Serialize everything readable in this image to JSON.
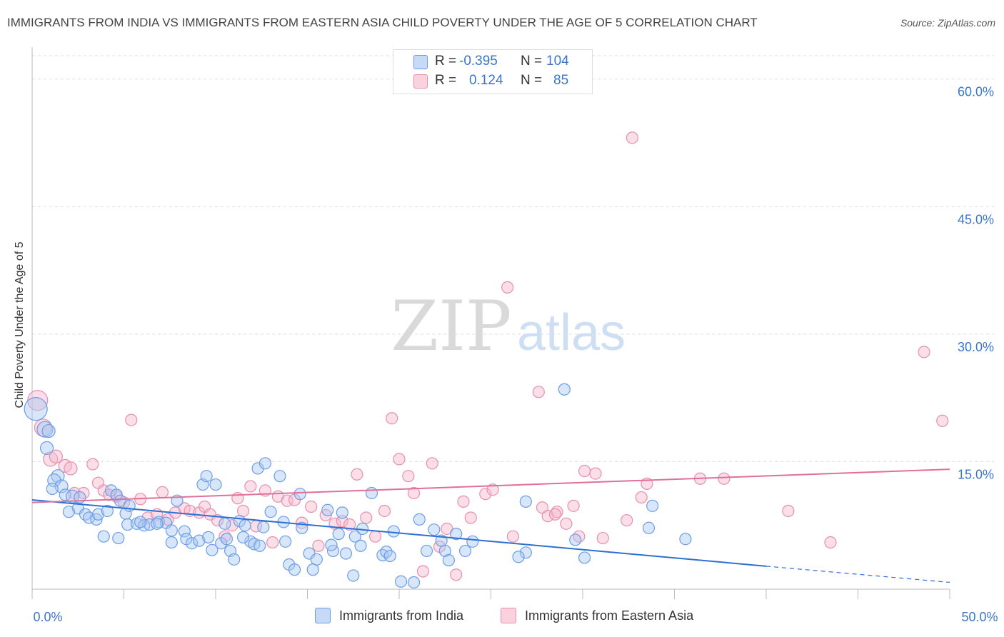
{
  "title": "IMMIGRANTS FROM INDIA VS IMMIGRANTS FROM EASTERN ASIA CHILD POVERTY UNDER THE AGE OF 5 CORRELATION CHART",
  "source": "Source: ZipAtlas.com",
  "watermark": {
    "zip": "ZIP",
    "atlas": "atlas"
  },
  "legend": {
    "r_label": "R =",
    "n_label": "N =",
    "rows": [
      {
        "r": "-0.395",
        "n": "104",
        "color": "#6b9de8"
      },
      {
        "r": "0.124",
        "n": "85",
        "color": "#e88fad"
      }
    ]
  },
  "bottom_legend": [
    "Immigrants from India",
    "Immigrants from Eastern Asia"
  ],
  "chart_data": {
    "type": "scatter",
    "title": "IMMIGRANTS FROM INDIA VS IMMIGRANTS FROM EASTERN ASIA CHILD POVERTY UNDER THE AGE OF 5 CORRELATION CHART",
    "ylabel": "Child Poverty Under the Age of 5",
    "xlabel": "",
    "xlim": [
      0,
      50
    ],
    "ylim": [
      0,
      63
    ],
    "x_tick_labels": [
      "0.0%",
      "50.0%"
    ],
    "y_ticks": [
      15,
      30,
      45,
      60
    ],
    "y_tick_labels": [
      "15.0%",
      "30.0%",
      "45.0%",
      "60.0%"
    ],
    "grid": true,
    "legend_position": "top-center",
    "colors": {
      "india": "#6b9de8",
      "eastern_asia": "#e88fad",
      "india_line": "#2e6fd3",
      "asia_line": "#e0709a"
    },
    "series": [
      {
        "name": "Immigrants from India",
        "trend": {
          "x0": 0,
          "y0": 10.5,
          "x1": 40,
          "y1": 2.7,
          "dash_to_x": 50,
          "dash_to_y": 0.8
        },
        "points": [
          [
            0.2,
            21.2,
            16
          ],
          [
            0.7,
            18.8,
            11
          ],
          [
            0.9,
            18.6,
            9
          ],
          [
            0.8,
            16.6,
            9
          ],
          [
            1.4,
            13.3,
            9
          ],
          [
            1.2,
            12.8,
            9
          ],
          [
            1.6,
            12.1,
            9
          ],
          [
            1.1,
            11.8,
            8
          ],
          [
            1.8,
            11.1,
            8
          ],
          [
            2.2,
            10.9,
            9
          ],
          [
            2.6,
            10.8,
            8
          ],
          [
            2.5,
            9.5,
            8
          ],
          [
            2.9,
            8.8,
            8
          ],
          [
            3.1,
            8.4,
            8
          ],
          [
            3.5,
            8.2,
            8
          ],
          [
            3.6,
            8.8,
            8
          ],
          [
            4.1,
            9.2,
            8
          ],
          [
            4.3,
            11.6,
            8
          ],
          [
            4.6,
            11.1,
            8
          ],
          [
            4.8,
            10.4,
            8
          ],
          [
            5.1,
            8.9,
            8
          ],
          [
            5.3,
            9.8,
            8
          ],
          [
            4.7,
            6.0,
            8
          ],
          [
            5.2,
            7.6,
            8
          ],
          [
            5.7,
            7.7,
            8
          ],
          [
            6.1,
            7.5,
            8
          ],
          [
            6.4,
            7.6,
            8
          ],
          [
            6.9,
            7.9,
            8
          ],
          [
            7.3,
            7.8,
            8
          ],
          [
            7.9,
            10.4,
            8
          ],
          [
            7.6,
            6.9,
            8
          ],
          [
            8.3,
            6.8,
            8
          ],
          [
            7.6,
            5.5,
            8
          ],
          [
            8.4,
            5.9,
            8
          ],
          [
            8.7,
            5.4,
            8
          ],
          [
            9.1,
            5.7,
            8
          ],
          [
            9.3,
            12.3,
            8
          ],
          [
            9.5,
            13.3,
            8
          ],
          [
            10.0,
            12.3,
            8
          ],
          [
            9.6,
            6.1,
            8
          ],
          [
            9.8,
            4.6,
            8
          ],
          [
            10.3,
            5.4,
            8
          ],
          [
            10.6,
            5.9,
            8
          ],
          [
            10.8,
            4.5,
            8
          ],
          [
            11.0,
            3.5,
            8
          ],
          [
            11.3,
            8.0,
            8
          ],
          [
            11.6,
            7.5,
            8
          ],
          [
            11.9,
            5.6,
            8
          ],
          [
            12.1,
            5.3,
            8
          ],
          [
            12.3,
            14.2,
            8
          ],
          [
            12.7,
            14.8,
            8
          ],
          [
            12.6,
            7.3,
            8
          ],
          [
            13.0,
            9.1,
            8
          ],
          [
            13.5,
            13.3,
            8
          ],
          [
            13.8,
            5.6,
            8
          ],
          [
            14.0,
            2.9,
            8
          ],
          [
            14.3,
            2.3,
            8
          ],
          [
            14.6,
            11.2,
            8
          ],
          [
            14.7,
            7.2,
            8
          ],
          [
            15.1,
            4.2,
            8
          ],
          [
            15.5,
            3.5,
            8
          ],
          [
            16.1,
            9.3,
            8
          ],
          [
            16.4,
            4.5,
            8
          ],
          [
            16.7,
            6.5,
            8
          ],
          [
            16.9,
            9.0,
            8
          ],
          [
            17.1,
            4.2,
            8
          ],
          [
            17.5,
            1.6,
            8
          ],
          [
            17.6,
            6.2,
            8
          ],
          [
            18.0,
            7.1,
            8
          ],
          [
            18.5,
            11.3,
            8
          ],
          [
            19.1,
            4.0,
            8
          ],
          [
            19.3,
            4.4,
            8
          ],
          [
            19.7,
            6.8,
            8
          ],
          [
            20.1,
            0.9,
            8
          ],
          [
            20.8,
            0.8,
            8
          ],
          [
            21.1,
            8.2,
            8
          ],
          [
            21.5,
            4.5,
            8
          ],
          [
            22.3,
            5.7,
            8
          ],
          [
            22.5,
            4.5,
            8
          ],
          [
            22.7,
            3.4,
            8
          ],
          [
            23.1,
            6.5,
            8
          ],
          [
            23.6,
            4.5,
            8
          ],
          [
            24.0,
            5.6,
            8
          ],
          [
            26.9,
            4.3,
            8
          ],
          [
            26.9,
            10.3,
            8
          ],
          [
            29.0,
            23.5,
            8
          ],
          [
            29.6,
            5.8,
            8
          ],
          [
            30.1,
            3.7,
            8
          ],
          [
            33.6,
            7.2,
            8
          ],
          [
            33.8,
            9.8,
            8
          ],
          [
            35.6,
            5.9,
            8
          ],
          [
            16.3,
            5.2,
            8
          ],
          [
            6.8,
            7.7,
            8
          ],
          [
            19.5,
            3.9,
            8
          ],
          [
            21.9,
            7.0,
            8
          ],
          [
            12.4,
            5.1,
            8
          ],
          [
            26.5,
            3.8,
            8
          ],
          [
            15.3,
            2.3,
            8
          ],
          [
            13.7,
            7.9,
            8
          ],
          [
            11.5,
            6.1,
            8
          ],
          [
            5.9,
            7.9,
            8
          ],
          [
            2.0,
            9.1,
            8
          ],
          [
            17.9,
            5.1,
            8
          ],
          [
            10.5,
            7.7,
            8
          ],
          [
            3.9,
            6.2,
            8
          ]
        ]
      },
      {
        "name": "Immigrants from Eastern Asia",
        "trend": {
          "x0": 0,
          "y0": 10.2,
          "x1": 50,
          "y1": 14.1
        },
        "points": [
          [
            0.3,
            22.2,
            14
          ],
          [
            0.6,
            19.0,
            12
          ],
          [
            1.0,
            15.3,
            10
          ],
          [
            1.3,
            15.6,
            9
          ],
          [
            1.8,
            14.5,
            9
          ],
          [
            2.1,
            14.2,
            9
          ],
          [
            2.3,
            11.3,
            8
          ],
          [
            2.8,
            11.3,
            8
          ],
          [
            3.3,
            14.7,
            8
          ],
          [
            3.6,
            12.5,
            8
          ],
          [
            3.9,
            11.6,
            8
          ],
          [
            4.2,
            11.1,
            8
          ],
          [
            4.6,
            10.9,
            8
          ],
          [
            5.0,
            10.2,
            8
          ],
          [
            5.4,
            19.9,
            8
          ],
          [
            5.9,
            10.6,
            8
          ],
          [
            6.3,
            8.4,
            8
          ],
          [
            6.8,
            8.8,
            8
          ],
          [
            7.1,
            11.4,
            8
          ],
          [
            7.4,
            8.2,
            8
          ],
          [
            7.8,
            9.0,
            8
          ],
          [
            8.3,
            9.5,
            8
          ],
          [
            8.6,
            9.2,
            8
          ],
          [
            9.1,
            9.0,
            8
          ],
          [
            9.4,
            9.7,
            8
          ],
          [
            9.7,
            8.8,
            8
          ],
          [
            10.1,
            8.1,
            8
          ],
          [
            10.5,
            6.2,
            8
          ],
          [
            10.9,
            7.5,
            8
          ],
          [
            11.2,
            10.7,
            8
          ],
          [
            11.5,
            9.2,
            8
          ],
          [
            11.9,
            12.1,
            8
          ],
          [
            12.2,
            7.4,
            8
          ],
          [
            12.7,
            11.6,
            8
          ],
          [
            13.1,
            5.5,
            8
          ],
          [
            13.4,
            10.9,
            8
          ],
          [
            13.9,
            10.4,
            8
          ],
          [
            14.3,
            10.5,
            8
          ],
          [
            14.7,
            7.8,
            8
          ],
          [
            15.2,
            9.7,
            8
          ],
          [
            15.6,
            5.1,
            8
          ],
          [
            16.0,
            8.7,
            8
          ],
          [
            16.5,
            7.7,
            8
          ],
          [
            16.9,
            8.0,
            8
          ],
          [
            17.3,
            7.6,
            8
          ],
          [
            17.7,
            13.5,
            8
          ],
          [
            18.2,
            8.4,
            8
          ],
          [
            18.7,
            6.2,
            8
          ],
          [
            19.2,
            9.2,
            8
          ],
          [
            19.6,
            20.1,
            8
          ],
          [
            20.0,
            15.3,
            8
          ],
          [
            20.5,
            13.3,
            8
          ],
          [
            20.8,
            11.3,
            8
          ],
          [
            21.3,
            2.1,
            8
          ],
          [
            21.8,
            14.8,
            8
          ],
          [
            22.2,
            5.0,
            8
          ],
          [
            22.6,
            7.1,
            8
          ],
          [
            23.1,
            1.7,
            8
          ],
          [
            23.5,
            10.3,
            8
          ],
          [
            23.9,
            8.4,
            8
          ],
          [
            24.7,
            11.2,
            8
          ],
          [
            25.1,
            11.7,
            8
          ],
          [
            25.9,
            35.5,
            8
          ],
          [
            27.6,
            23.2,
            8
          ],
          [
            26.2,
            6.2,
            8
          ],
          [
            27.8,
            9.6,
            8
          ],
          [
            28.1,
            8.6,
            8
          ],
          [
            28.6,
            9.1,
            8
          ],
          [
            29.1,
            7.7,
            8
          ],
          [
            29.5,
            9.8,
            8
          ],
          [
            29.8,
            6.2,
            8
          ],
          [
            30.1,
            13.9,
            8
          ],
          [
            30.7,
            13.6,
            8
          ],
          [
            31.1,
            6.0,
            8
          ],
          [
            32.7,
            53.1,
            8
          ],
          [
            32.4,
            8.1,
            8
          ],
          [
            33.2,
            10.8,
            8
          ],
          [
            33.5,
            12.4,
            8
          ],
          [
            36.4,
            13.0,
            8
          ],
          [
            37.7,
            13.0,
            8
          ],
          [
            41.2,
            9.2,
            8
          ],
          [
            43.5,
            5.5,
            8
          ],
          [
            48.6,
            27.9,
            8
          ],
          [
            49.6,
            19.8,
            8
          ],
          [
            28.5,
            8.8,
            8
          ]
        ]
      }
    ]
  }
}
